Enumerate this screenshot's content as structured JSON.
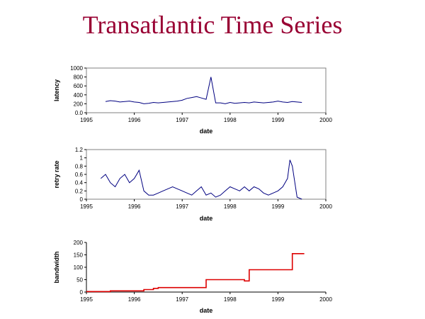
{
  "title": "Transatlantic Time Series",
  "colors": {
    "title": "#990033",
    "series_blue": "#000080",
    "series_red": "#dd0000"
  },
  "chart_data": [
    {
      "type": "line",
      "xlabel": "date",
      "ylabel": "latency",
      "xlim": [
        1995,
        2000
      ],
      "ylim": [
        0,
        1000
      ],
      "xticks": [
        "1995",
        "1996",
        "1997",
        "1998",
        "1999",
        "2000"
      ],
      "yticks": [
        "0.0",
        "200",
        "400",
        "600",
        "800",
        "1000"
      ],
      "grid": false,
      "series": [
        {
          "color": "#000080",
          "x": [
            1995.4,
            1995.5,
            1995.6,
            1995.7,
            1995.8,
            1995.9,
            1996.0,
            1996.1,
            1996.2,
            1996.3,
            1996.4,
            1996.5,
            1996.6,
            1996.7,
            1996.8,
            1996.9,
            1997.0,
            1997.1,
            1997.2,
            1997.3,
            1997.4,
            1997.5,
            1997.6,
            1997.7,
            1997.8,
            1997.9,
            1998.0,
            1998.1,
            1998.2,
            1998.3,
            1998.4,
            1998.5,
            1998.6,
            1998.7,
            1998.8,
            1998.9,
            1999.0,
            1999.1,
            1999.2,
            1999.3,
            1999.4,
            1999.5
          ],
          "y": [
            250,
            270,
            260,
            240,
            250,
            260,
            240,
            230,
            200,
            210,
            230,
            220,
            230,
            240,
            250,
            260,
            280,
            320,
            340,
            360,
            330,
            300,
            800,
            220,
            220,
            200,
            230,
            210,
            220,
            230,
            220,
            240,
            230,
            220,
            230,
            240,
            260,
            240,
            230,
            250,
            240,
            230
          ]
        }
      ]
    },
    {
      "type": "line",
      "xlabel": "date",
      "ylabel": "retry rate",
      "xlim": [
        1995,
        2000
      ],
      "ylim": [
        0,
        1.2
      ],
      "xticks": [
        "1995",
        "1996",
        "1997",
        "1998",
        "1999",
        "2000"
      ],
      "yticks": [
        "0",
        "0.2",
        "0.4",
        "0.6",
        "0.8",
        "1",
        "1.2"
      ],
      "grid": false,
      "series": [
        {
          "color": "#000080",
          "x": [
            1995.3,
            1995.4,
            1995.5,
            1995.6,
            1995.7,
            1995.8,
            1995.9,
            1996.0,
            1996.1,
            1996.2,
            1996.3,
            1996.4,
            1996.5,
            1996.6,
            1996.7,
            1996.8,
            1996.9,
            1997.0,
            1997.1,
            1997.2,
            1997.3,
            1997.4,
            1997.5,
            1997.6,
            1997.7,
            1997.8,
            1997.9,
            1998.0,
            1998.1,
            1998.2,
            1998.3,
            1998.4,
            1998.5,
            1998.6,
            1998.7,
            1998.8,
            1998.9,
            1999.0,
            1999.1,
            1999.2,
            1999.25,
            1999.3,
            1999.4,
            1999.5
          ],
          "y": [
            0.5,
            0.6,
            0.4,
            0.3,
            0.5,
            0.6,
            0.4,
            0.5,
            0.7,
            0.2,
            0.1,
            0.1,
            0.15,
            0.2,
            0.25,
            0.3,
            0.25,
            0.2,
            0.15,
            0.1,
            0.2,
            0.3,
            0.1,
            0.15,
            0.05,
            0.1,
            0.2,
            0.3,
            0.25,
            0.2,
            0.3,
            0.2,
            0.3,
            0.25,
            0.15,
            0.1,
            0.15,
            0.2,
            0.3,
            0.5,
            0.95,
            0.8,
            0.05,
            0.0
          ]
        }
      ]
    },
    {
      "type": "line",
      "xlabel": "date",
      "ylabel": "bandwidth",
      "xlim": [
        1995,
        2000
      ],
      "ylim": [
        0,
        200
      ],
      "xticks": [
        "1995",
        "1996",
        "1997",
        "1998",
        "1999",
        "2000"
      ],
      "yticks": [
        "0",
        "50",
        "100",
        "150",
        "200"
      ],
      "grid": false,
      "series": [
        {
          "color": "#dd0000",
          "x": [
            1995.0,
            1995.5,
            1995.5,
            1996.2,
            1996.2,
            1996.4,
            1996.4,
            1996.5,
            1996.5,
            1997.5,
            1997.5,
            1998.3,
            1998.3,
            1998.4,
            1998.4,
            1999.3,
            1999.3,
            1999.55
          ],
          "y": [
            2,
            2,
            5,
            5,
            10,
            10,
            15,
            15,
            18,
            18,
            50,
            50,
            45,
            45,
            90,
            90,
            155,
            155
          ]
        }
      ]
    }
  ]
}
